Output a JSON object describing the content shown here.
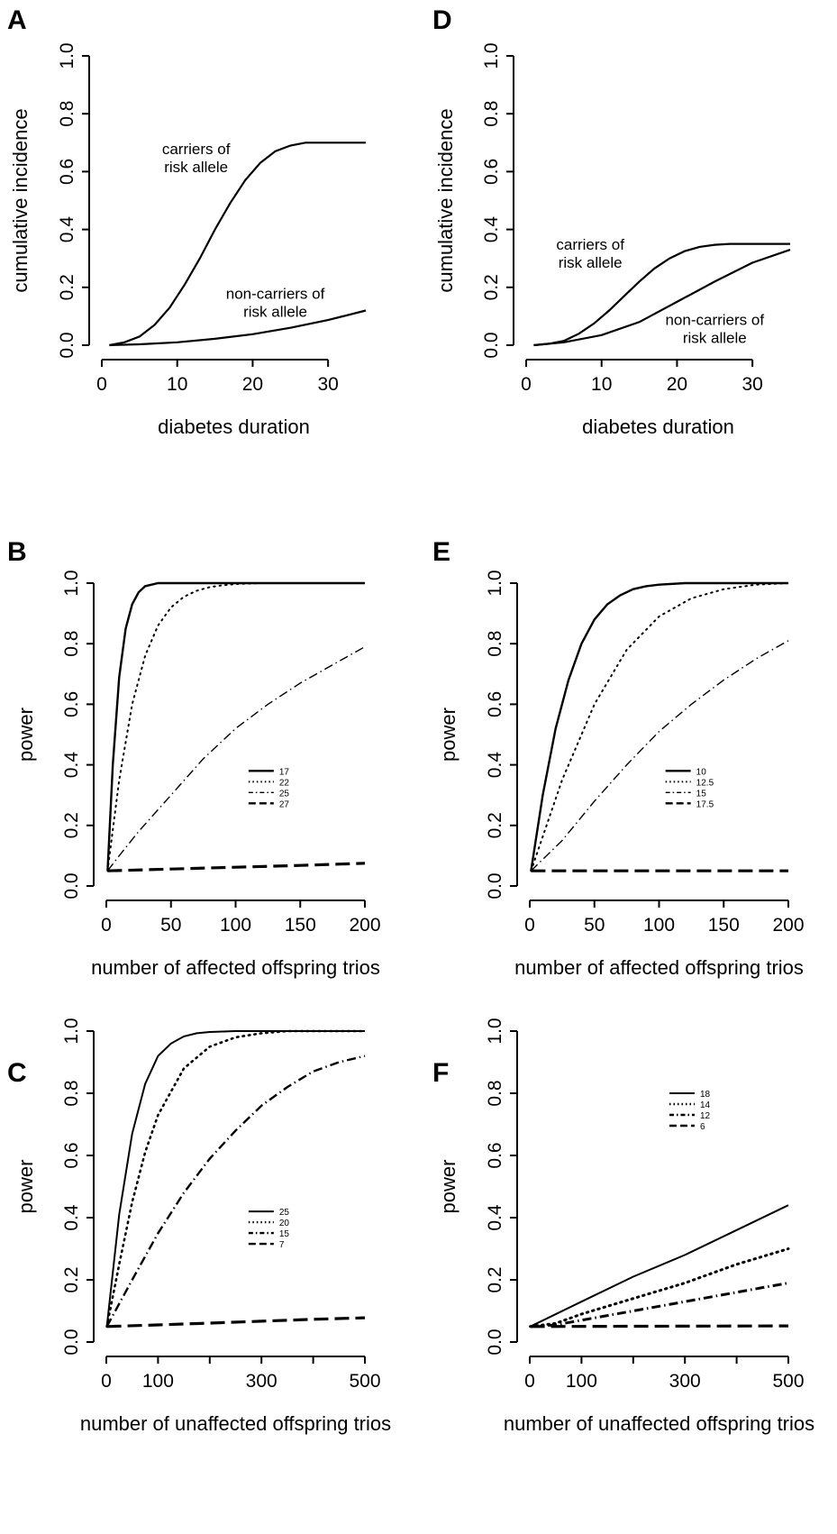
{
  "chart_data": [
    {
      "panel": "A",
      "type": "line",
      "xlabel": "diabetes duration",
      "ylabel": "cumulative incidence",
      "xlim": [
        0,
        35
      ],
      "ylim": [
        0,
        1
      ],
      "xticks": [
        0,
        10,
        20,
        30
      ],
      "yticks": [
        0.0,
        0.2,
        0.4,
        0.6,
        0.8,
        1.0
      ],
      "series": [
        {
          "x": [
            1,
            3,
            5,
            7,
            9,
            11,
            13,
            15,
            17,
            19,
            21,
            23,
            25,
            27,
            29,
            31,
            33,
            35
          ],
          "values": [
            0.0,
            0.01,
            0.03,
            0.07,
            0.13,
            0.21,
            0.3,
            0.4,
            0.49,
            0.57,
            0.63,
            0.67,
            0.69,
            0.7,
            0.7,
            0.7,
            0.7,
            0.7
          ],
          "style": "solid",
          "width": 2.2
        },
        {
          "x": [
            1,
            5,
            10,
            15,
            20,
            25,
            30,
            35
          ],
          "values": [
            0.0,
            0.003,
            0.01,
            0.022,
            0.038,
            0.06,
            0.087,
            0.12
          ],
          "style": "solid",
          "width": 2.2
        }
      ],
      "annotations": [
        {
          "lines": [
            "carriers of",
            "risk allele"
          ],
          "at": [
            12.5,
            0.66
          ]
        },
        {
          "lines": [
            "non-carriers of",
            "risk allele"
          ],
          "at": [
            23,
            0.16
          ]
        }
      ]
    },
    {
      "panel": "D",
      "type": "line",
      "xlabel": "diabetes duration",
      "ylabel": "cumulative incidence",
      "xlim": [
        0,
        35
      ],
      "ylim": [
        0,
        1
      ],
      "xticks": [
        0,
        10,
        20,
        30
      ],
      "yticks": [
        0.0,
        0.2,
        0.4,
        0.6,
        0.8,
        1.0
      ],
      "series": [
        {
          "x": [
            1,
            3,
            5,
            7,
            9,
            11,
            13,
            15,
            17,
            19,
            21,
            23,
            25,
            27,
            29,
            31,
            33,
            35
          ],
          "values": [
            0.0,
            0.005,
            0.015,
            0.04,
            0.075,
            0.12,
            0.17,
            0.22,
            0.265,
            0.3,
            0.325,
            0.34,
            0.347,
            0.35,
            0.35,
            0.35,
            0.35,
            0.35
          ],
          "style": "solid",
          "width": 2.2
        },
        {
          "x": [
            1,
            5,
            10,
            15,
            20,
            25,
            30,
            35
          ],
          "values": [
            0.0,
            0.01,
            0.035,
            0.08,
            0.15,
            0.22,
            0.285,
            0.33
          ],
          "style": "solid",
          "width": 2.2
        }
      ],
      "annotations": [
        {
          "lines": [
            "carriers of",
            "risk allele"
          ],
          "at": [
            8.5,
            0.33
          ]
        },
        {
          "lines": [
            "non-carriers of",
            "risk allele"
          ],
          "at": [
            25,
            0.07
          ]
        }
      ]
    },
    {
      "panel": "B",
      "type": "line",
      "xlabel": "number of affected offspring trios",
      "ylabel": "power",
      "xlim": [
        0,
        200
      ],
      "ylim": [
        0,
        1
      ],
      "xticks": [
        0,
        50,
        100,
        150,
        200
      ],
      "yticks": [
        0.0,
        0.2,
        0.4,
        0.6,
        0.8,
        1.0
      ],
      "legend": {
        "labels": [
          "17",
          "22",
          "25",
          "27"
        ],
        "at": [
          110,
          0.38
        ]
      },
      "series": [
        {
          "name": "17",
          "x": [
            1,
            5,
            10,
            15,
            20,
            25,
            30,
            35,
            40,
            50,
            60,
            80,
            100,
            150,
            200
          ],
          "values": [
            0.05,
            0.4,
            0.69,
            0.85,
            0.93,
            0.97,
            0.99,
            0.995,
            1.0,
            1.0,
            1.0,
            1.0,
            1.0,
            1.0,
            1.0
          ],
          "style": "solid",
          "width": 2.4
        },
        {
          "name": "22",
          "x": [
            1,
            10,
            20,
            30,
            40,
            50,
            60,
            70,
            80,
            90,
            100,
            120,
            150,
            200
          ],
          "values": [
            0.05,
            0.35,
            0.6,
            0.76,
            0.86,
            0.92,
            0.955,
            0.975,
            0.987,
            0.993,
            0.997,
            1.0,
            1.0,
            1.0
          ],
          "style": "dotted",
          "width": 2
        },
        {
          "name": "25",
          "x": [
            1,
            10,
            25,
            50,
            75,
            100,
            125,
            150,
            175,
            200
          ],
          "values": [
            0.05,
            0.1,
            0.18,
            0.3,
            0.42,
            0.52,
            0.6,
            0.67,
            0.73,
            0.79
          ],
          "style": "dashdot",
          "width": 1.4
        },
        {
          "name": "27",
          "x": [
            1,
            50,
            100,
            150,
            200
          ],
          "values": [
            0.05,
            0.056,
            0.062,
            0.068,
            0.075
          ],
          "style": "dashed",
          "width": 3.2
        }
      ]
    },
    {
      "panel": "E",
      "type": "line",
      "xlabel": "number of affected offspring trios",
      "ylabel": "power",
      "xlim": [
        0,
        200
      ],
      "ylim": [
        0,
        1
      ],
      "xticks": [
        0,
        50,
        100,
        150,
        200
      ],
      "yticks": [
        0.0,
        0.2,
        0.4,
        0.6,
        0.8,
        1.0
      ],
      "legend": {
        "labels": [
          "10",
          "12.5",
          "15",
          "17.5"
        ],
        "at": [
          105,
          0.38
        ]
      },
      "series": [
        {
          "name": "10",
          "x": [
            1,
            10,
            20,
            30,
            40,
            50,
            60,
            70,
            80,
            90,
            100,
            120,
            150,
            200
          ],
          "values": [
            0.05,
            0.3,
            0.52,
            0.68,
            0.8,
            0.88,
            0.93,
            0.96,
            0.98,
            0.99,
            0.995,
            1.0,
            1.0,
            1.0
          ],
          "style": "solid",
          "width": 2.4
        },
        {
          "name": "12.5",
          "x": [
            1,
            25,
            50,
            75,
            100,
            125,
            150,
            175,
            200
          ],
          "values": [
            0.05,
            0.35,
            0.6,
            0.78,
            0.89,
            0.95,
            0.98,
            0.995,
            1.0
          ],
          "style": "dotted",
          "width": 2
        },
        {
          "name": "15",
          "x": [
            1,
            25,
            50,
            75,
            100,
            125,
            150,
            175,
            200
          ],
          "values": [
            0.05,
            0.15,
            0.28,
            0.4,
            0.51,
            0.6,
            0.68,
            0.75,
            0.81
          ],
          "style": "dashdot",
          "width": 1.4
        },
        {
          "name": "17.5",
          "x": [
            1,
            200
          ],
          "values": [
            0.05,
            0.05
          ],
          "style": "dashed",
          "width": 3.2
        }
      ]
    },
    {
      "panel": "C",
      "type": "line",
      "xlabel": "number of unaffected offspring trios",
      "ylabel": "power",
      "xlim": [
        0,
        500
      ],
      "ylim": [
        0,
        1
      ],
      "xticks": [
        0,
        100,
        300,
        500
      ],
      "xticks_minor": [
        200,
        400
      ],
      "yticks": [
        0.0,
        0.2,
        0.4,
        0.6,
        0.8,
        1.0
      ],
      "legend": {
        "labels": [
          "25",
          "20",
          "15",
          "7"
        ],
        "at": [
          275,
          0.42
        ]
      },
      "series": [
        {
          "name": "25",
          "x": [
            1,
            25,
            50,
            75,
            100,
            125,
            150,
            175,
            200,
            250,
            300,
            400,
            500
          ],
          "values": [
            0.05,
            0.41,
            0.67,
            0.83,
            0.92,
            0.96,
            0.983,
            0.993,
            0.997,
            1.0,
            1.0,
            1.0,
            1.0
          ],
          "style": "solid",
          "width": 2
        },
        {
          "name": "20",
          "x": [
            1,
            25,
            50,
            75,
            100,
            150,
            200,
            250,
            300,
            350,
            400,
            500
          ],
          "values": [
            0.05,
            0.25,
            0.45,
            0.61,
            0.73,
            0.88,
            0.95,
            0.98,
            0.993,
            1.0,
            1.0,
            1.0
          ],
          "style": "dotted",
          "width": 2.6
        },
        {
          "name": "15",
          "x": [
            1,
            50,
            100,
            150,
            200,
            250,
            300,
            350,
            400,
            450,
            500
          ],
          "values": [
            0.05,
            0.2,
            0.35,
            0.48,
            0.59,
            0.68,
            0.76,
            0.82,
            0.87,
            0.9,
            0.92
          ],
          "style": "dashdot",
          "width": 2.4
        },
        {
          "name": "7",
          "x": [
            1,
            100,
            200,
            300,
            400,
            500
          ],
          "values": [
            0.05,
            0.055,
            0.061,
            0.067,
            0.073,
            0.078
          ],
          "style": "dashed",
          "width": 3.2
        }
      ]
    },
    {
      "panel": "F",
      "type": "line",
      "xlabel": "number of unaffected offspring trios",
      "ylabel": "power",
      "xlim": [
        0,
        500
      ],
      "ylim": [
        0,
        1
      ],
      "xticks": [
        0,
        100,
        300,
        500
      ],
      "xticks_minor": [
        200,
        400
      ],
      "yticks": [
        0.0,
        0.2,
        0.4,
        0.6,
        0.8,
        1.0
      ],
      "legend": {
        "labels": [
          "18",
          "14",
          "12",
          "6"
        ],
        "at": [
          270,
          0.8
        ]
      },
      "series": [
        {
          "name": "18",
          "x": [
            1,
            100,
            200,
            300,
            400,
            500
          ],
          "values": [
            0.05,
            0.13,
            0.21,
            0.28,
            0.36,
            0.44
          ],
          "style": "solid",
          "width": 2
        },
        {
          "name": "14",
          "x": [
            1,
            50,
            100,
            200,
            300,
            400,
            500
          ],
          "values": [
            0.05,
            0.06,
            0.09,
            0.14,
            0.19,
            0.25,
            0.3
          ],
          "style": "dotted",
          "width": 3
        },
        {
          "name": "12",
          "x": [
            1,
            50,
            100,
            200,
            300,
            400,
            500
          ],
          "values": [
            0.05,
            0.055,
            0.07,
            0.1,
            0.13,
            0.16,
            0.19
          ],
          "style": "dashdot",
          "width": 3
        },
        {
          "name": "6",
          "x": [
            1,
            500
          ],
          "values": [
            0.05,
            0.052
          ],
          "style": "dashed",
          "width": 3.2
        }
      ]
    }
  ]
}
